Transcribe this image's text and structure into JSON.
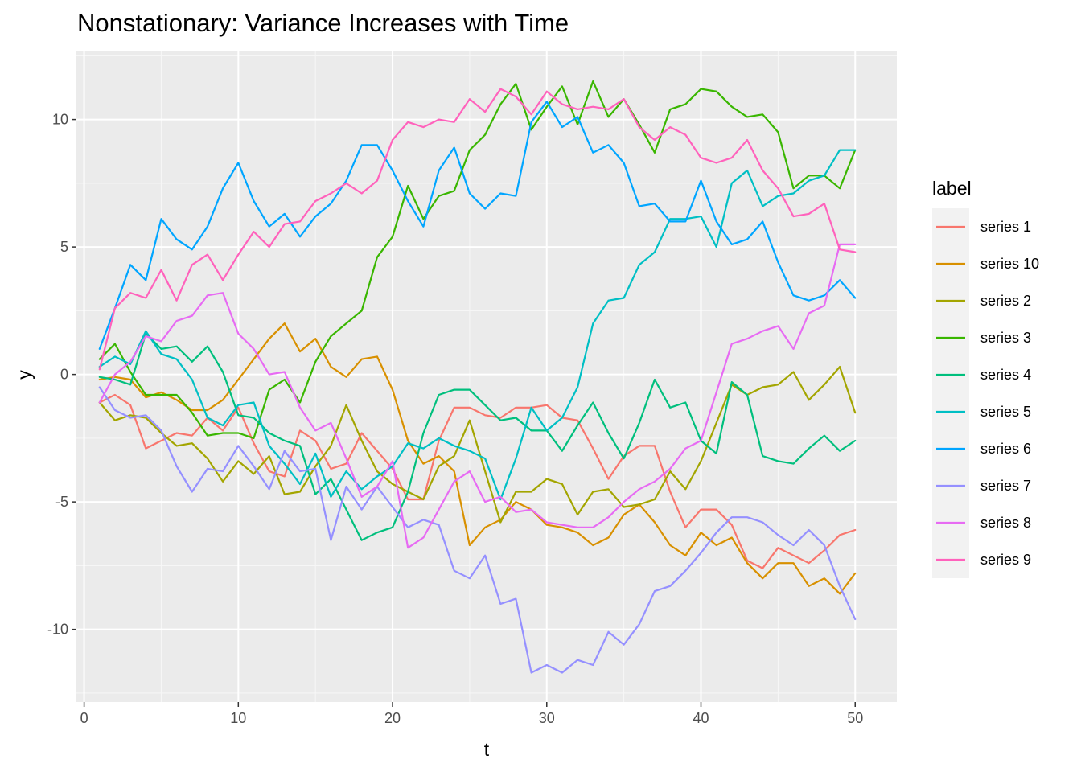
{
  "chart_data": {
    "type": "line",
    "title": "Nonstationary: Variance Increases with Time",
    "xlabel": "t",
    "ylabel": "y",
    "xlim": [
      -0.5,
      52.7
    ],
    "ylim": [
      -12.85,
      12.7
    ],
    "x_ticks": [
      0,
      10,
      20,
      30,
      40,
      50
    ],
    "y_ticks": [
      -10,
      -5,
      0,
      5,
      10
    ],
    "x_tick_labels": [
      "0",
      "10",
      "20",
      "30",
      "40",
      "50"
    ],
    "y_tick_labels": [
      "-10",
      "-5",
      "0",
      "5",
      "10"
    ],
    "x_minor_ticks": [
      5,
      15,
      25,
      35,
      45
    ],
    "y_minor_ticks": [
      -12.5,
      -7.5,
      -2.5,
      2.5,
      7.5,
      12.5
    ],
    "grid": true,
    "legend": {
      "title": "label",
      "position": "right"
    },
    "x": [
      1,
      2,
      3,
      4,
      5,
      6,
      7,
      8,
      9,
      10,
      11,
      12,
      13,
      14,
      15,
      16,
      17,
      18,
      19,
      20,
      21,
      22,
      23,
      24,
      25,
      26,
      27,
      28,
      29,
      30,
      31,
      32,
      33,
      34,
      35,
      36,
      37,
      38,
      39,
      40,
      41,
      42,
      43,
      44,
      45,
      46,
      47,
      48,
      49,
      50
    ],
    "series": [
      {
        "name": "series 1",
        "color": "#F8766D",
        "values": [
          -1.1,
          -0.8,
          -1.2,
          -2.9,
          -2.6,
          -2.3,
          -2.4,
          -1.7,
          -2.2,
          -1.3,
          -2.7,
          -3.8,
          -4.0,
          -2.2,
          -2.6,
          -3.7,
          -3.5,
          -2.3,
          -3.0,
          -3.7,
          -4.9,
          -4.9,
          -2.6,
          -1.3,
          -1.3,
          -1.6,
          -1.7,
          -1.3,
          -1.3,
          -1.2,
          -1.7,
          -1.8,
          -2.9,
          -4.1,
          -3.2,
          -2.8,
          -2.8,
          -4.6,
          -6.0,
          -5.3,
          -5.3,
          -5.9,
          -7.3,
          -7.6,
          -6.8,
          -7.1,
          -7.4,
          -6.9,
          -6.3,
          -6.1
        ]
      },
      {
        "name": "series 10",
        "color": "#D89000",
        "values": [
          -0.2,
          -0.1,
          -0.2,
          -0.9,
          -0.7,
          -1.0,
          -1.4,
          -1.4,
          -1.0,
          -0.2,
          0.6,
          1.4,
          2.0,
          0.9,
          1.4,
          0.3,
          -0.1,
          0.6,
          0.7,
          -0.6,
          -2.6,
          -3.5,
          -3.2,
          -3.8,
          -6.7,
          -6.0,
          -5.7,
          -5.0,
          -5.3,
          -5.9,
          -6.0,
          -6.2,
          -6.7,
          -6.4,
          -5.5,
          -5.1,
          -5.8,
          -6.7,
          -7.1,
          -6.2,
          -6.7,
          -6.4,
          -7.4,
          -8.0,
          -7.4,
          -7.4,
          -8.3,
          -8.0,
          -8.6,
          -7.8
        ]
      },
      {
        "name": "series 2",
        "color": "#A3A500",
        "values": [
          -1.1,
          -1.8,
          -1.6,
          -1.7,
          -2.3,
          -2.8,
          -2.7,
          -3.3,
          -4.2,
          -3.4,
          -3.9,
          -3.2,
          -4.7,
          -4.6,
          -3.6,
          -2.8,
          -1.2,
          -2.6,
          -3.8,
          -4.3,
          -4.6,
          -4.9,
          -3.6,
          -3.2,
          -1.8,
          -3.8,
          -5.8,
          -4.6,
          -4.6,
          -4.1,
          -4.3,
          -5.5,
          -4.6,
          -4.5,
          -5.2,
          -5.1,
          -4.9,
          -3.8,
          -4.5,
          -3.4,
          -1.9,
          -0.4,
          -0.8,
          -0.5,
          -0.4,
          0.1,
          -1.0,
          -0.4,
          0.3,
          -1.5
        ]
      },
      {
        "name": "series 3",
        "color": "#39B600",
        "values": [
          0.6,
          1.2,
          0.1,
          -0.8,
          -0.8,
          -0.8,
          -1.5,
          -2.4,
          -2.3,
          -2.3,
          -2.5,
          -0.6,
          -0.2,
          -1.1,
          0.5,
          1.5,
          2.0,
          2.5,
          4.6,
          5.4,
          7.4,
          6.1,
          7.0,
          7.2,
          8.8,
          9.4,
          10.6,
          11.4,
          9.6,
          10.5,
          11.3,
          9.8,
          11.5,
          10.1,
          10.8,
          9.8,
          8.7,
          10.4,
          10.6,
          11.2,
          11.1,
          10.5,
          10.1,
          10.2,
          9.5,
          7.3,
          7.8,
          7.8,
          7.3,
          8.8
        ]
      },
      {
        "name": "series 4",
        "color": "#00BF7D",
        "values": [
          -0.1,
          -0.2,
          -0.4,
          1.6,
          1.0,
          1.1,
          0.5,
          1.1,
          0.1,
          -1.6,
          -1.7,
          -2.3,
          -2.6,
          -2.8,
          -4.7,
          -4.1,
          -5.3,
          -6.5,
          -6.2,
          -6.0,
          -4.6,
          -2.3,
          -0.8,
          -0.6,
          -0.6,
          -1.2,
          -1.8,
          -1.7,
          -2.2,
          -2.2,
          -3.0,
          -2.0,
          -1.1,
          -2.3,
          -3.3,
          -1.9,
          -0.2,
          -1.3,
          -1.1,
          -2.6,
          -3.1,
          -0.3,
          -0.8,
          -3.2,
          -3.4,
          -3.5,
          -2.9,
          -2.4,
          -3.0,
          -2.6
        ]
      },
      {
        "name": "series 5",
        "color": "#00BFC4",
        "values": [
          0.3,
          0.7,
          0.4,
          1.7,
          0.8,
          0.6,
          -0.2,
          -1.7,
          -2.0,
          -1.2,
          -1.1,
          -2.8,
          -3.5,
          -4.3,
          -3.1,
          -4.8,
          -3.8,
          -4.5,
          -4.0,
          -3.6,
          -2.7,
          -2.9,
          -2.5,
          -2.8,
          -3.0,
          -3.3,
          -4.9,
          -3.3,
          -1.3,
          -2.2,
          -1.7,
          -0.5,
          2.0,
          2.9,
          3.0,
          4.3,
          4.8,
          6.1,
          6.1,
          6.2,
          5.0,
          7.5,
          8.0,
          6.6,
          7.0,
          7.1,
          7.6,
          7.8,
          8.8,
          8.8
        ]
      },
      {
        "name": "series 6",
        "color": "#00A5FF",
        "values": [
          1.0,
          2.6,
          4.3,
          3.7,
          6.1,
          5.3,
          4.9,
          5.8,
          7.3,
          8.3,
          6.8,
          5.8,
          6.3,
          5.4,
          6.2,
          6.7,
          7.6,
          9.0,
          9.0,
          8.0,
          6.8,
          5.8,
          8.0,
          8.9,
          7.1,
          6.5,
          7.1,
          7.0,
          9.9,
          10.7,
          9.7,
          10.1,
          8.7,
          9.0,
          8.3,
          6.6,
          6.7,
          6.0,
          6.0,
          7.6,
          6.0,
          5.1,
          5.3,
          6.0,
          4.4,
          3.1,
          2.9,
          3.1,
          3.7,
          3.0
        ]
      },
      {
        "name": "series 7",
        "color": "#9590FF",
        "values": [
          -0.5,
          -1.4,
          -1.7,
          -1.6,
          -2.2,
          -3.6,
          -4.6,
          -3.7,
          -3.8,
          -2.8,
          -3.6,
          -4.5,
          -3.0,
          -3.8,
          -3.7,
          -6.5,
          -4.4,
          -5.3,
          -4.4,
          -5.2,
          -6.0,
          -5.7,
          -5.9,
          -7.7,
          -8.0,
          -7.1,
          -9.0,
          -8.8,
          -11.7,
          -11.4,
          -11.7,
          -11.2,
          -11.4,
          -10.1,
          -10.6,
          -9.8,
          -8.5,
          -8.3,
          -7.7,
          -7.0,
          -6.2,
          -5.6,
          -5.6,
          -5.8,
          -6.3,
          -6.7,
          -6.1,
          -6.7,
          -8.3,
          -9.6
        ]
      },
      {
        "name": "series 8",
        "color": "#E76BF3",
        "values": [
          -1.1,
          0.0,
          0.5,
          1.5,
          1.3,
          2.1,
          2.3,
          3.1,
          3.2,
          1.6,
          1.0,
          0.0,
          0.1,
          -1.3,
          -2.2,
          -1.9,
          -3.3,
          -4.8,
          -4.4,
          -3.4,
          -6.8,
          -6.4,
          -5.3,
          -4.2,
          -3.8,
          -5.0,
          -4.8,
          -5.4,
          -5.3,
          -5.8,
          -5.9,
          -6.0,
          -6.0,
          -5.6,
          -5.0,
          -4.5,
          -4.2,
          -3.7,
          -2.9,
          -2.6,
          -0.7,
          1.2,
          1.4,
          1.7,
          1.9,
          1.0,
          2.4,
          2.7,
          5.1,
          5.1
        ]
      },
      {
        "name": "series 9",
        "color": "#FF62BC",
        "values": [
          0.2,
          2.6,
          3.2,
          3.0,
          4.1,
          2.9,
          4.3,
          4.7,
          3.7,
          4.7,
          5.6,
          5.0,
          5.9,
          6.0,
          6.8,
          7.1,
          7.5,
          7.1,
          7.6,
          9.2,
          9.9,
          9.7,
          10.0,
          9.9,
          10.8,
          10.3,
          11.2,
          10.9,
          10.2,
          11.1,
          10.6,
          10.4,
          10.5,
          10.4,
          10.8,
          9.7,
          9.2,
          9.7,
          9.4,
          8.5,
          8.3,
          8.5,
          9.2,
          8.0,
          7.3,
          6.2,
          6.3,
          6.7,
          4.9,
          4.8
        ]
      }
    ]
  }
}
